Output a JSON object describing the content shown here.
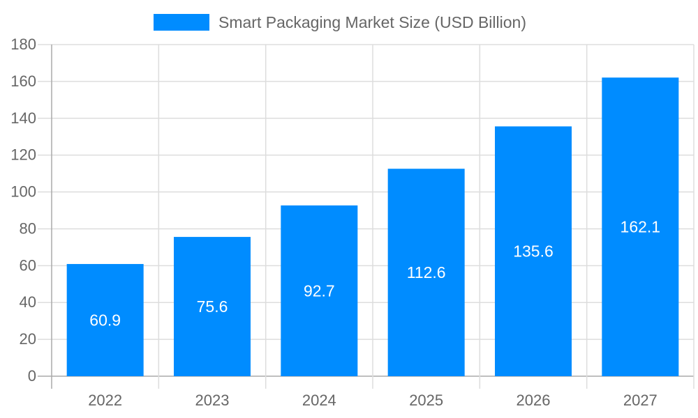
{
  "chart_data": {
    "type": "bar",
    "title": "",
    "xlabel": "",
    "ylabel": "",
    "categories": [
      "2022",
      "2023",
      "2024",
      "2025",
      "2026",
      "2027"
    ],
    "series": [
      {
        "name": "Smart Packaging Market Size (USD Billion)",
        "values": [
          60.9,
          75.6,
          92.7,
          112.6,
          135.6,
          162.1
        ],
        "color": "#008cff"
      }
    ],
    "data_labels": [
      "60.9",
      "75.6",
      "92.7",
      "112.6",
      "135.6",
      "162.1"
    ],
    "ylim": [
      0,
      180
    ],
    "yticks": [
      0,
      20,
      40,
      60,
      80,
      100,
      120,
      140,
      160,
      180
    ],
    "grid": true,
    "legend_position": "top"
  }
}
